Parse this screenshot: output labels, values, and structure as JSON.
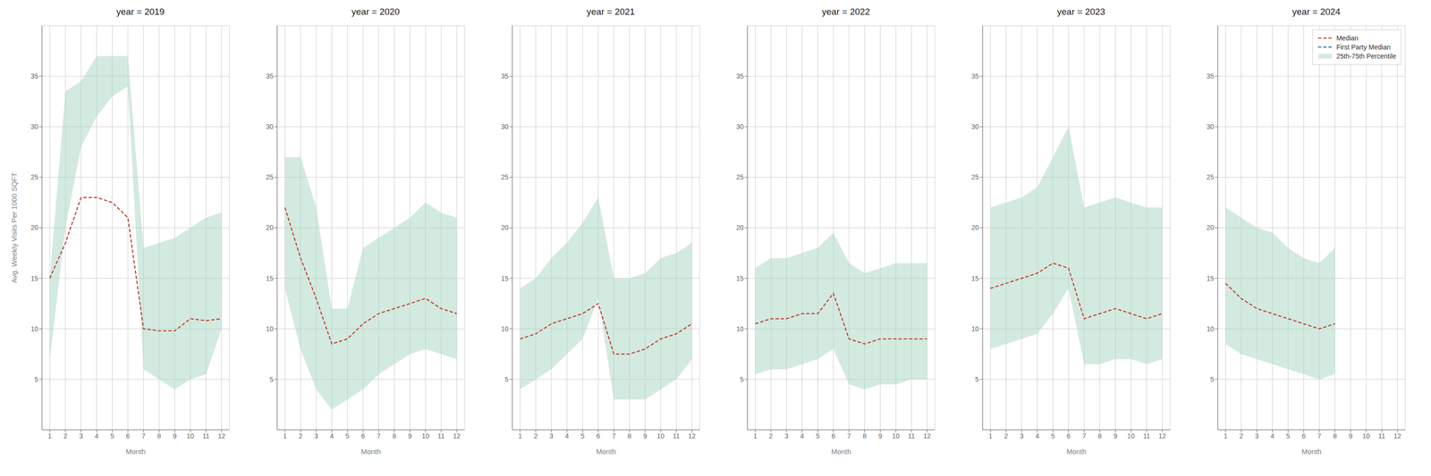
{
  "chart_data": [
    {
      "type": "line",
      "title": "year = 2019",
      "x_label": "Month",
      "y_label": "Avg. Weekly Visits Per 1000 SQFT",
      "x": [
        1,
        2,
        3,
        4,
        5,
        6,
        7,
        8,
        9,
        10,
        11,
        12
      ],
      "xlim": [
        0.5,
        12.5
      ],
      "xticks": [
        1,
        2,
        3,
        4,
        5,
        6,
        7,
        8,
        9,
        10,
        11,
        12
      ],
      "ylim": [
        0,
        40
      ],
      "yticks": [
        5,
        10,
        15,
        20,
        25,
        30,
        35
      ],
      "grid": true,
      "series": [
        {
          "name": "Median",
          "color": "#c0392b",
          "line_style": "dashed",
          "values": [
            15.0,
            18.5,
            23.0,
            23.0,
            22.5,
            21.0,
            10.0,
            9.8,
            9.8,
            11.0,
            10.8,
            11.0
          ]
        },
        {
          "name": "25th-75th Percentile",
          "type": "area",
          "color": "#a8d5c2",
          "low": [
            7.0,
            20.0,
            28.0,
            31.0,
            33.0,
            34.0,
            6.0,
            5.0,
            4.0,
            5.0,
            5.5,
            10.0
          ],
          "high": [
            15.0,
            33.5,
            34.5,
            37.0,
            37.0,
            37.0,
            18.0,
            18.5,
            19.0,
            20.0,
            21.0,
            21.5
          ]
        }
      ]
    },
    {
      "type": "line",
      "title": "year = 2020",
      "x_label": "Month",
      "x": [
        1,
        2,
        3,
        4,
        5,
        6,
        7,
        8,
        9,
        10,
        11,
        12
      ],
      "xlim": [
        0.5,
        12.5
      ],
      "xticks": [
        1,
        2,
        3,
        4,
        5,
        6,
        7,
        8,
        9,
        10,
        11,
        12
      ],
      "ylim": [
        0,
        40
      ],
      "yticks": [
        5,
        10,
        15,
        20,
        25,
        30,
        35
      ],
      "grid": true,
      "series": [
        {
          "name": "Median",
          "color": "#c0392b",
          "line_style": "dashed",
          "values": [
            22.0,
            17.0,
            13.0,
            8.5,
            9.0,
            10.5,
            11.5,
            12.0,
            12.5,
            13.0,
            12.0,
            11.5
          ]
        },
        {
          "name": "25th-75th Percentile",
          "type": "area",
          "color": "#a8d5c2",
          "low": [
            14.0,
            8.0,
            4.0,
            2.0,
            3.0,
            4.0,
            5.5,
            6.5,
            7.5,
            8.0,
            7.5,
            7.0
          ],
          "high": [
            27.0,
            27.0,
            22.0,
            12.0,
            12.0,
            18.0,
            19.0,
            20.0,
            21.0,
            22.5,
            21.5,
            21.0
          ]
        }
      ]
    },
    {
      "type": "line",
      "title": "year = 2021",
      "x_label": "Month",
      "x": [
        1,
        2,
        3,
        4,
        5,
        6,
        7,
        8,
        9,
        10,
        11,
        12
      ],
      "xlim": [
        0.5,
        12.5
      ],
      "xticks": [
        1,
        2,
        3,
        4,
        5,
        6,
        7,
        8,
        9,
        10,
        11,
        12
      ],
      "ylim": [
        0,
        40
      ],
      "yticks": [
        5,
        10,
        15,
        20,
        25,
        30,
        35
      ],
      "grid": true,
      "series": [
        {
          "name": "Median",
          "color": "#c0392b",
          "line_style": "dashed",
          "values": [
            9.0,
            9.5,
            10.5,
            11.0,
            11.5,
            12.5,
            7.5,
            7.5,
            8.0,
            9.0,
            9.5,
            10.5
          ]
        },
        {
          "name": "25th-75th Percentile",
          "type": "area",
          "color": "#a8d5c2",
          "low": [
            4.0,
            5.0,
            6.0,
            7.5,
            9.0,
            13.0,
            3.0,
            3.0,
            3.0,
            4.0,
            5.0,
            7.0
          ],
          "high": [
            14.0,
            15.0,
            17.0,
            18.5,
            20.5,
            23.0,
            15.0,
            15.0,
            15.5,
            17.0,
            17.5,
            18.5
          ]
        }
      ]
    },
    {
      "type": "line",
      "title": "year = 2022",
      "x_label": "Month",
      "x": [
        1,
        2,
        3,
        4,
        5,
        6,
        7,
        8,
        9,
        10,
        11,
        12
      ],
      "xlim": [
        0.5,
        12.5
      ],
      "xticks": [
        1,
        2,
        3,
        4,
        5,
        6,
        7,
        8,
        9,
        10,
        11,
        12
      ],
      "ylim": [
        0,
        40
      ],
      "yticks": [
        5,
        10,
        15,
        20,
        25,
        30,
        35
      ],
      "grid": true,
      "series": [
        {
          "name": "Median",
          "color": "#c0392b",
          "line_style": "dashed",
          "values": [
            10.5,
            11.0,
            11.0,
            11.5,
            11.5,
            13.5,
            9.0,
            8.5,
            9.0,
            9.0,
            9.0,
            9.0
          ]
        },
        {
          "name": "25th-75th Percentile",
          "type": "area",
          "color": "#a8d5c2",
          "low": [
            5.5,
            6.0,
            6.0,
            6.5,
            7.0,
            8.0,
            4.5,
            4.0,
            4.5,
            4.5,
            5.0,
            5.0
          ],
          "high": [
            16.0,
            17.0,
            17.0,
            17.5,
            18.0,
            19.5,
            16.5,
            15.5,
            16.0,
            16.5,
            16.5,
            16.5
          ]
        }
      ]
    },
    {
      "type": "line",
      "title": "year = 2023",
      "x_label": "Month",
      "x": [
        1,
        2,
        3,
        4,
        5,
        6,
        7,
        8,
        9,
        10,
        11,
        12
      ],
      "xlim": [
        0.5,
        12.5
      ],
      "xticks": [
        1,
        2,
        3,
        4,
        5,
        6,
        7,
        8,
        9,
        10,
        11,
        12
      ],
      "ylim": [
        0,
        40
      ],
      "yticks": [
        5,
        10,
        15,
        20,
        25,
        30,
        35
      ],
      "grid": true,
      "series": [
        {
          "name": "Median",
          "color": "#c0392b",
          "line_style": "dashed",
          "values": [
            14.0,
            14.5,
            15.0,
            15.5,
            16.5,
            16.0,
            11.0,
            11.5,
            12.0,
            11.5,
            11.0,
            11.5
          ]
        },
        {
          "name": "25th-75th Percentile",
          "type": "area",
          "color": "#a8d5c2",
          "low": [
            8.0,
            8.5,
            9.0,
            9.5,
            11.5,
            14.0,
            6.5,
            6.5,
            7.0,
            7.0,
            6.5,
            7.0
          ],
          "high": [
            22.0,
            22.5,
            23.0,
            24.0,
            27.0,
            30.0,
            22.0,
            22.5,
            23.0,
            22.5,
            22.0,
            22.0
          ]
        }
      ]
    },
    {
      "type": "line",
      "title": "year = 2024",
      "x_label": "Month",
      "x": [
        1,
        2,
        3,
        4,
        5,
        6,
        7,
        8,
        9,
        10,
        11,
        12
      ],
      "xlim": [
        0.5,
        12.5
      ],
      "xticks": [
        1,
        2,
        3,
        4,
        5,
        6,
        7,
        8,
        9,
        10,
        11,
        12
      ],
      "ylim": [
        0,
        40
      ],
      "yticks": [
        5,
        10,
        15,
        20,
        25,
        30,
        35
      ],
      "grid": true,
      "legend": "upper right",
      "series": [
        {
          "name": "Median",
          "color": "#c0392b",
          "line_style": "dashed",
          "values": [
            14.5,
            13.0,
            12.0,
            11.5,
            11.0,
            10.5,
            10.0,
            10.5,
            null,
            null,
            null,
            null
          ]
        },
        {
          "name": "First Party Median",
          "color": "#2471a3",
          "line_style": "dashed",
          "values": [
            null,
            null,
            null,
            null,
            null,
            null,
            null,
            null,
            null,
            null,
            null,
            null
          ]
        },
        {
          "name": "25th-75th Percentile",
          "type": "area",
          "color": "#a8d5c2",
          "low": [
            8.5,
            7.5,
            7.0,
            6.5,
            6.0,
            5.5,
            5.0,
            5.5,
            null,
            null,
            null,
            null
          ],
          "high": [
            22.0,
            21.0,
            20.0,
            19.5,
            18.0,
            17.0,
            16.5,
            18.0,
            null,
            null,
            null,
            null
          ]
        }
      ]
    }
  ]
}
